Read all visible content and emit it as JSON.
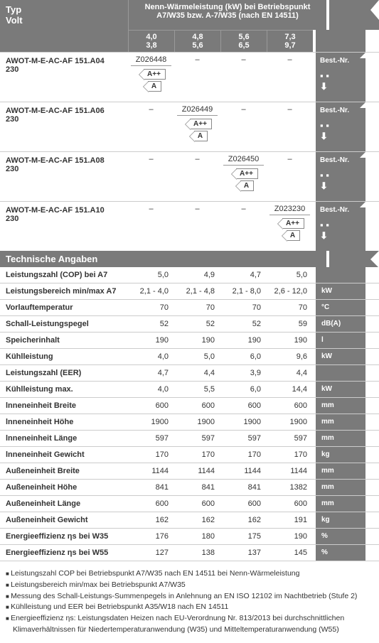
{
  "header": {
    "typ": "Typ",
    "volt": "Volt",
    "nenn": "Nenn-Wärmeleistung (kW) bei Betriebspunkt A7/W35 bzw. A-7/W35 (nach EN 14511)",
    "cols": [
      {
        "top": "4,0",
        "bot": "3,8"
      },
      {
        "top": "4,8",
        "bot": "5,6"
      },
      {
        "top": "5,6",
        "bot": "6,5"
      },
      {
        "top": "7,3",
        "bot": "9,7"
      }
    ]
  },
  "best_label": "Best.-Nr.",
  "products": [
    {
      "name": "AWOT-M-E-AC-AF 151.A04",
      "volt": "230",
      "code": "Z026448",
      "ratings": [
        "A++",
        "A"
      ],
      "col": 0
    },
    {
      "name": "AWOT-M-E-AC-AF 151.A06",
      "volt": "230",
      "code": "Z026449",
      "ratings": [
        "A++",
        "A"
      ],
      "col": 1
    },
    {
      "name": "AWOT-M-E-AC-AF 151.A08",
      "volt": "230",
      "code": "Z026450",
      "ratings": [
        "A++",
        "A"
      ],
      "col": 2
    },
    {
      "name": "AWOT-M-E-AC-AF 151.A10",
      "volt": "230",
      "code": "Z023230",
      "ratings": [
        "A++",
        "A"
      ],
      "col": 3
    }
  ],
  "tech_title": "Technische Angaben",
  "rows": [
    {
      "label": "Leistungszahl (COP) bei A7",
      "vals": [
        "5,0",
        "4,9",
        "4,7",
        "5,0"
      ],
      "unit": ""
    },
    {
      "label": "Leistungsbereich min/max A7",
      "vals": [
        "2,1 - 4,0",
        "2,1 - 4,8",
        "2,1 - 8,0",
        "2,6 - 12,0"
      ],
      "unit": "kW"
    },
    {
      "label": "Vorlauftemperatur",
      "vals": [
        "70",
        "70",
        "70",
        "70"
      ],
      "unit": "°C"
    },
    {
      "label": "Schall-Leistungspegel",
      "vals": [
        "52",
        "52",
        "52",
        "59"
      ],
      "unit": "dB(A)"
    },
    {
      "label": "Speicherinhalt",
      "vals": [
        "190",
        "190",
        "190",
        "190"
      ],
      "unit": "l"
    },
    {
      "label": "Kühlleistung",
      "vals": [
        "4,0",
        "5,0",
        "6,0",
        "9,6"
      ],
      "unit": "kW"
    },
    {
      "label": "Leistungszahl (EER)",
      "vals": [
        "4,7",
        "4,4",
        "3,9",
        "4,4"
      ],
      "unit": ""
    },
    {
      "label": "Kühlleistung max.",
      "vals": [
        "4,0",
        "5,5",
        "6,0",
        "14,4"
      ],
      "unit": "kW"
    },
    {
      "label": "lnneneinheit Breite",
      "vals": [
        "600",
        "600",
        "600",
        "600"
      ],
      "unit": "mm"
    },
    {
      "label": "lnneneinheit Höhe",
      "vals": [
        "1900",
        "1900",
        "1900",
        "1900"
      ],
      "unit": "mm"
    },
    {
      "label": "lnneneinheit Länge",
      "vals": [
        "597",
        "597",
        "597",
        "597"
      ],
      "unit": "mm"
    },
    {
      "label": "lnneneinheit Gewicht",
      "vals": [
        "170",
        "170",
        "170",
        "170"
      ],
      "unit": "kg"
    },
    {
      "label": "Außeneinheit Breite",
      "vals": [
        "1144",
        "1144",
        "1144",
        "1144"
      ],
      "unit": "mm"
    },
    {
      "label": "Außeneinheit Höhe",
      "vals": [
        "841",
        "841",
        "841",
        "1382"
      ],
      "unit": "mm"
    },
    {
      "label": "Außeneinheit Länge",
      "vals": [
        "600",
        "600",
        "600",
        "600"
      ],
      "unit": "mm"
    },
    {
      "label": "Außeneinheit Gewicht",
      "vals": [
        "162",
        "162",
        "162",
        "191"
      ],
      "unit": "kg"
    },
    {
      "label": "Energieeffizienz ηs bei W35",
      "vals": [
        "176",
        "180",
        "175",
        "190"
      ],
      "unit": "%"
    },
    {
      "label": "Energieeffizienz ηs bei W55",
      "vals": [
        "127",
        "138",
        "137",
        "145"
      ],
      "unit": "%"
    }
  ],
  "notes": [
    "Leistungszahl COP bei Betriebspunkt A7/W35 nach EN 14511 bei Nenn-Wärmeleistung",
    "Leistungsbereich min/max bei Betriebspunkt A7/W35",
    "Messung des Schall-Leistungs-Summenpegels in Anlehnung an EN ISO 12102 im Nachtbetrieb (Stufe 2)",
    "Kühlleistung und EER bei Betriebspunkt A35/W18 nach EN 14511",
    "Energieeffizienz ηs: Leistungsdaten Heizen nach EU-Verordnung Nr. 813/2013 bei durchschnittlichen Klimaverhältnissen für Niedertemperaturanwendung (W35) und Mitteltemperaturanwendung (W55)"
  ]
}
